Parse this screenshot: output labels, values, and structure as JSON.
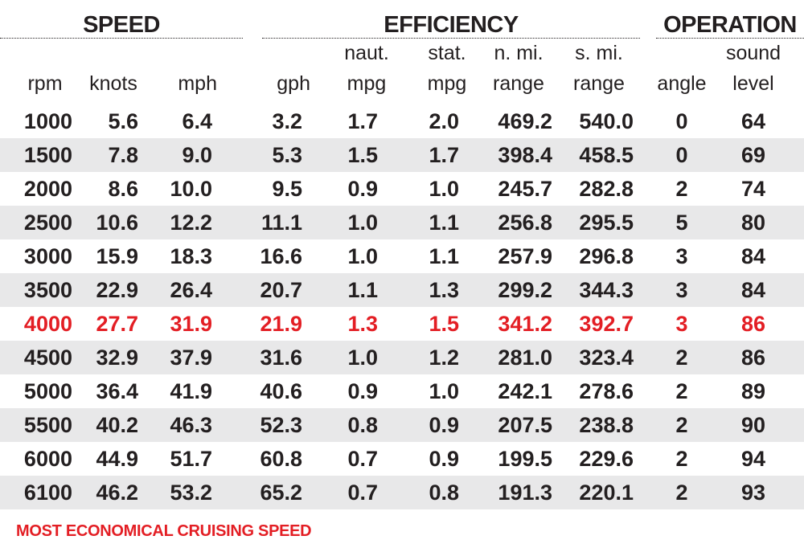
{
  "groups": {
    "speed": "SPEED",
    "efficiency": "EFFICIENCY",
    "operation": "OPERATION"
  },
  "headers": {
    "rpm": "rpm",
    "knots": "knots",
    "mph": "mph",
    "gph": "gph",
    "naut_mpg_1": "naut.",
    "naut_mpg_2": "mpg",
    "stat_mpg_1": "stat.",
    "stat_mpg_2": "mpg",
    "nmi_range_1": "n. mi.",
    "nmi_range_2": "range",
    "smi_range_1": "s. mi.",
    "smi_range_2": "range",
    "angle": "angle",
    "sound_1": "sound",
    "sound_2": "level"
  },
  "footnote": "MOST ECONOMICAL CRUISING SPEED",
  "colors": {
    "text": "#231f20",
    "highlight": "#e31e24",
    "row_shade": "#e8e8e9"
  },
  "chart_data": {
    "type": "table",
    "columns": [
      "rpm",
      "knots",
      "mph",
      "gph",
      "naut. mpg",
      "stat. mpg",
      "n. mi. range",
      "s. mi. range",
      "angle",
      "sound level"
    ],
    "highlighted_rpm": "4000",
    "rows": [
      [
        "1000",
        "5.6",
        "6.4",
        "3.2",
        "1.7",
        "2.0",
        "469.2",
        "540.0",
        "0",
        "64"
      ],
      [
        "1500",
        "7.8",
        "9.0",
        "5.3",
        "1.5",
        "1.7",
        "398.4",
        "458.5",
        "0",
        "69"
      ],
      [
        "2000",
        "8.6",
        "10.0",
        "9.5",
        "0.9",
        "1.0",
        "245.7",
        "282.8",
        "2",
        "74"
      ],
      [
        "2500",
        "10.6",
        "12.2",
        "11.1",
        "1.0",
        "1.1",
        "256.8",
        "295.5",
        "5",
        "80"
      ],
      [
        "3000",
        "15.9",
        "18.3",
        "16.6",
        "1.0",
        "1.1",
        "257.9",
        "296.8",
        "3",
        "84"
      ],
      [
        "3500",
        "22.9",
        "26.4",
        "20.7",
        "1.1",
        "1.3",
        "299.2",
        "344.3",
        "3",
        "84"
      ],
      [
        "4000",
        "27.7",
        "31.9",
        "21.9",
        "1.3",
        "1.5",
        "341.2",
        "392.7",
        "3",
        "86"
      ],
      [
        "4500",
        "32.9",
        "37.9",
        "31.6",
        "1.0",
        "1.2",
        "281.0",
        "323.4",
        "2",
        "86"
      ],
      [
        "5000",
        "36.4",
        "41.9",
        "40.6",
        "0.9",
        "1.0",
        "242.1",
        "278.6",
        "2",
        "89"
      ],
      [
        "5500",
        "40.2",
        "46.3",
        "52.3",
        "0.8",
        "0.9",
        "207.5",
        "238.8",
        "2",
        "90"
      ],
      [
        "6000",
        "44.9",
        "51.7",
        "60.8",
        "0.7",
        "0.9",
        "199.5",
        "229.6",
        "2",
        "94"
      ],
      [
        "6100",
        "46.2",
        "53.2",
        "65.2",
        "0.7",
        "0.8",
        "191.3",
        "220.1",
        "2",
        "93"
      ]
    ]
  }
}
